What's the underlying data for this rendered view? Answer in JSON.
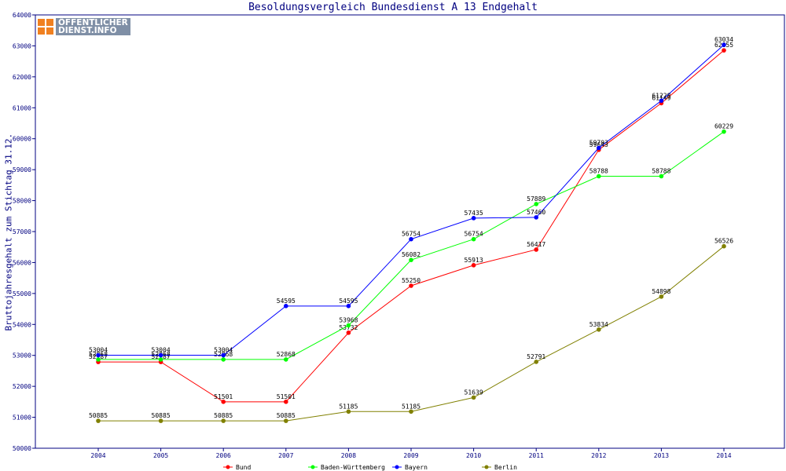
{
  "brand": {
    "line1": "ÖFFENTLICHER",
    "line2": "DIENST.INFO",
    "accent": "#f08020"
  },
  "chart_data": {
    "type": "line",
    "title": "Besoldungsvergleich Bundesdienst A 13 Endgehalt",
    "xlabel": "",
    "ylabel": "Bruttojahresgehalt zum Stichtag 31.12.",
    "categories": [
      "2004",
      "2005",
      "2006",
      "2007",
      "2008",
      "2009",
      "2010",
      "2011",
      "2012",
      "2013",
      "2014"
    ],
    "ylim": [
      50000,
      64000
    ],
    "yticks": [
      50000,
      51000,
      52000,
      53000,
      54000,
      55000,
      56000,
      57000,
      58000,
      59000,
      60000,
      61000,
      62000,
      63000,
      64000
    ],
    "grid": false,
    "legend_position": "bottom",
    "series": [
      {
        "name": "Bund",
        "color": "#ff0000",
        "values": [
          52787,
          52787,
          51501,
          51501,
          53732,
          55250,
          55913,
          56417,
          59643,
          61149,
          62855
        ]
      },
      {
        "name": "Baden-Württemberg",
        "color": "#00ff00",
        "values": [
          52868,
          52868,
          52868,
          52868,
          53968,
          56082,
          56754,
          57889,
          58788,
          58788,
          60229
        ]
      },
      {
        "name": "Bayern",
        "color": "#0000ff",
        "values": [
          53004,
          53004,
          53004,
          54595,
          54595,
          56754,
          57435,
          57460,
          59703,
          61228,
          63034
        ]
      },
      {
        "name": "Berlin",
        "color": "#808000",
        "values": [
          50885,
          50885,
          50885,
          50885,
          51185,
          51185,
          51639,
          52791,
          53834,
          54898,
          56526
        ]
      }
    ]
  }
}
